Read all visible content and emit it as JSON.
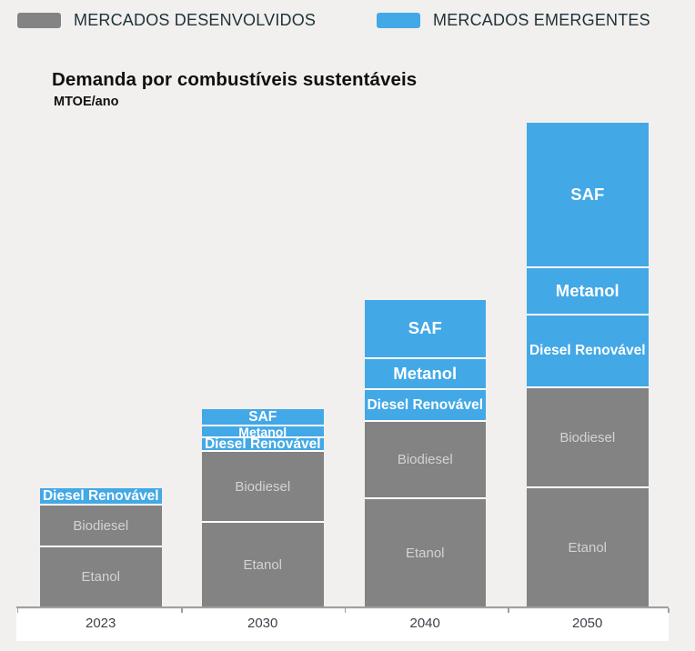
{
  "title": "Demanda por combustíveis sustentáveis",
  "subtitle": "MTOE/ano",
  "colors": {
    "developed": "#838383",
    "emergent": "#43a8e6",
    "background": "#f1f0ee",
    "axis": "#a0a0a0",
    "segment_label_on_gray": "#d3d3d3",
    "segment_label_on_blue": "#ffffff"
  },
  "legend": {
    "items": [
      {
        "id": "developed",
        "label": "MERCADOS DESENVOLVIDOS",
        "color": "#838383"
      },
      {
        "id": "emergent",
        "label": "MERCADOS EMERGENTES",
        "color": "#43a8e6"
      }
    ]
  },
  "chart_data": {
    "type": "bar",
    "stacked": true,
    "orientation": "vertical",
    "title": "Demanda por combustíveis sustentáveis",
    "ylabel": "MTOE/ano",
    "xlabel": "",
    "categories": [
      "2023",
      "2030",
      "2040",
      "2050"
    ],
    "value_unit": "MTOE/ano (estimated, no numeric axis shown)",
    "ylim": [
      0,
      540
    ],
    "grid": false,
    "legend_position": "top",
    "series": [
      {
        "name": "Etanol",
        "group": "MERCADOS DESENVOLVIDOS",
        "color": "#838383",
        "values": [
          65,
          92,
          118,
          130
        ]
      },
      {
        "name": "Biodiesel",
        "group": "MERCADOS DESENVOLVIDOS",
        "color": "#838383",
        "values": [
          44,
          76,
          83,
          108
        ]
      },
      {
        "name": "Diesel Renovável",
        "group": "MERCADOS EMERGENTES",
        "color": "#43a8e6",
        "values": [
          17,
          13,
          33,
          78
        ]
      },
      {
        "name": "Metanol",
        "group": "MERCADOS EMERGENTES",
        "color": "#43a8e6",
        "values": [
          0,
          11,
          32,
          50
        ]
      },
      {
        "name": "SAF",
        "group": "MERCADOS EMERGENTES",
        "color": "#43a8e6",
        "values": [
          0,
          17,
          63,
          158
        ]
      }
    ],
    "totals": [
      126,
      209,
      329,
      524
    ]
  }
}
